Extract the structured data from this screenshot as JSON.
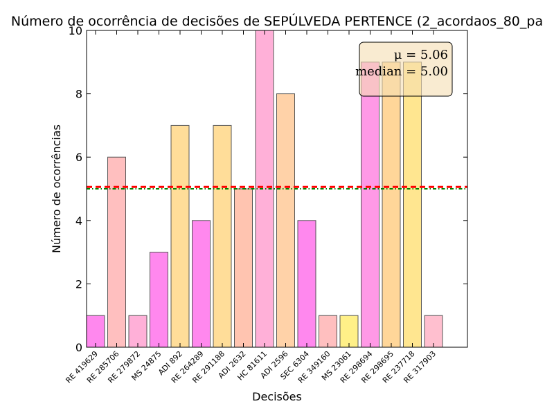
{
  "chart_data": {
    "type": "bar",
    "title": "Número de ocorrência de decisões de SEPÚLVEDA PERTENCE (2_acordaos_80_pa",
    "xlabel": "Decisões",
    "ylabel": "Número de ocorrências",
    "ylim": [
      0,
      10
    ],
    "yticks": [
      "0",
      "2",
      "4",
      "6",
      "8",
      "10"
    ],
    "categories": [
      "RE 419629",
      "RE 285706",
      "RE 279872",
      "MS 24875",
      "ADI 892",
      "RE 264289",
      "RE 291188",
      "ADI 2632",
      "HC 81611",
      "ADI 2596",
      "SEC 6304",
      "RE 349160",
      "MS 23061",
      "RE 298694",
      "RE 298695",
      "RE 237718",
      "RE 317903"
    ],
    "values": [
      1,
      6,
      1,
      3,
      7,
      4,
      7,
      5,
      10,
      8,
      4,
      1,
      1,
      9,
      9,
      9,
      1
    ],
    "bar_colors": [
      "#ff88ee",
      "#ffbfbf",
      "#ffb0d8",
      "#ff88ee",
      "#ffdd99",
      "#ff88ee",
      "#ffdd99",
      "#ffc4b0",
      "#ffb0d8",
      "#ffd2a8",
      "#ff88ee",
      "#ffbfbf",
      "#fff088",
      "#ff99e6",
      "#ffd699",
      "#ffe690",
      "#ffbfcf"
    ],
    "mean": 5.06,
    "median": 5.0,
    "mean_line_color": "#ff0000",
    "median_line_color": "#008000",
    "stats_box": {
      "mean_label": "μ = 5.06",
      "median_label": "median = 5.00",
      "position": "top-right"
    },
    "grid": false,
    "legend": "none"
  }
}
